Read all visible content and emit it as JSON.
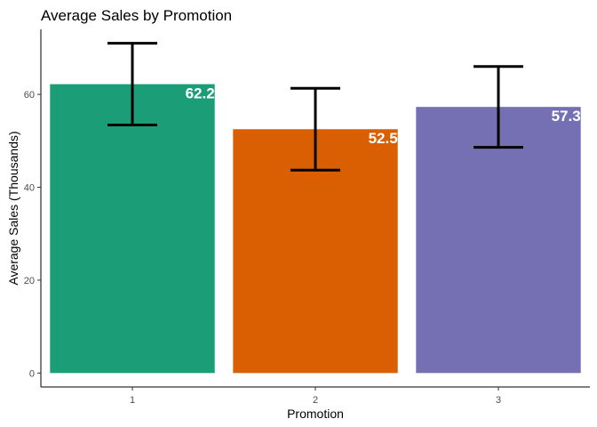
{
  "chart_data": {
    "type": "bar",
    "title": "Average Sales by Promotion",
    "xlabel": "Promotion",
    "ylabel": "Average Sales (Thousands)",
    "categories": [
      "1",
      "2",
      "3"
    ],
    "values": [
      62.2,
      52.5,
      57.3
    ],
    "value_labels": [
      "62.2",
      "52.5",
      "57.3"
    ],
    "error_low": [
      53.4,
      43.7,
      48.6
    ],
    "error_high": [
      71.0,
      61.3,
      66.0
    ],
    "colors": [
      "#1b9e77",
      "#d95f02",
      "#7570b3"
    ],
    "ylim": [
      -3,
      74
    ],
    "yticks": [
      0,
      20,
      40,
      60
    ],
    "ytick_labels": [
      "0",
      "20",
      "40",
      "60"
    ],
    "grid": false,
    "legend": "none"
  }
}
